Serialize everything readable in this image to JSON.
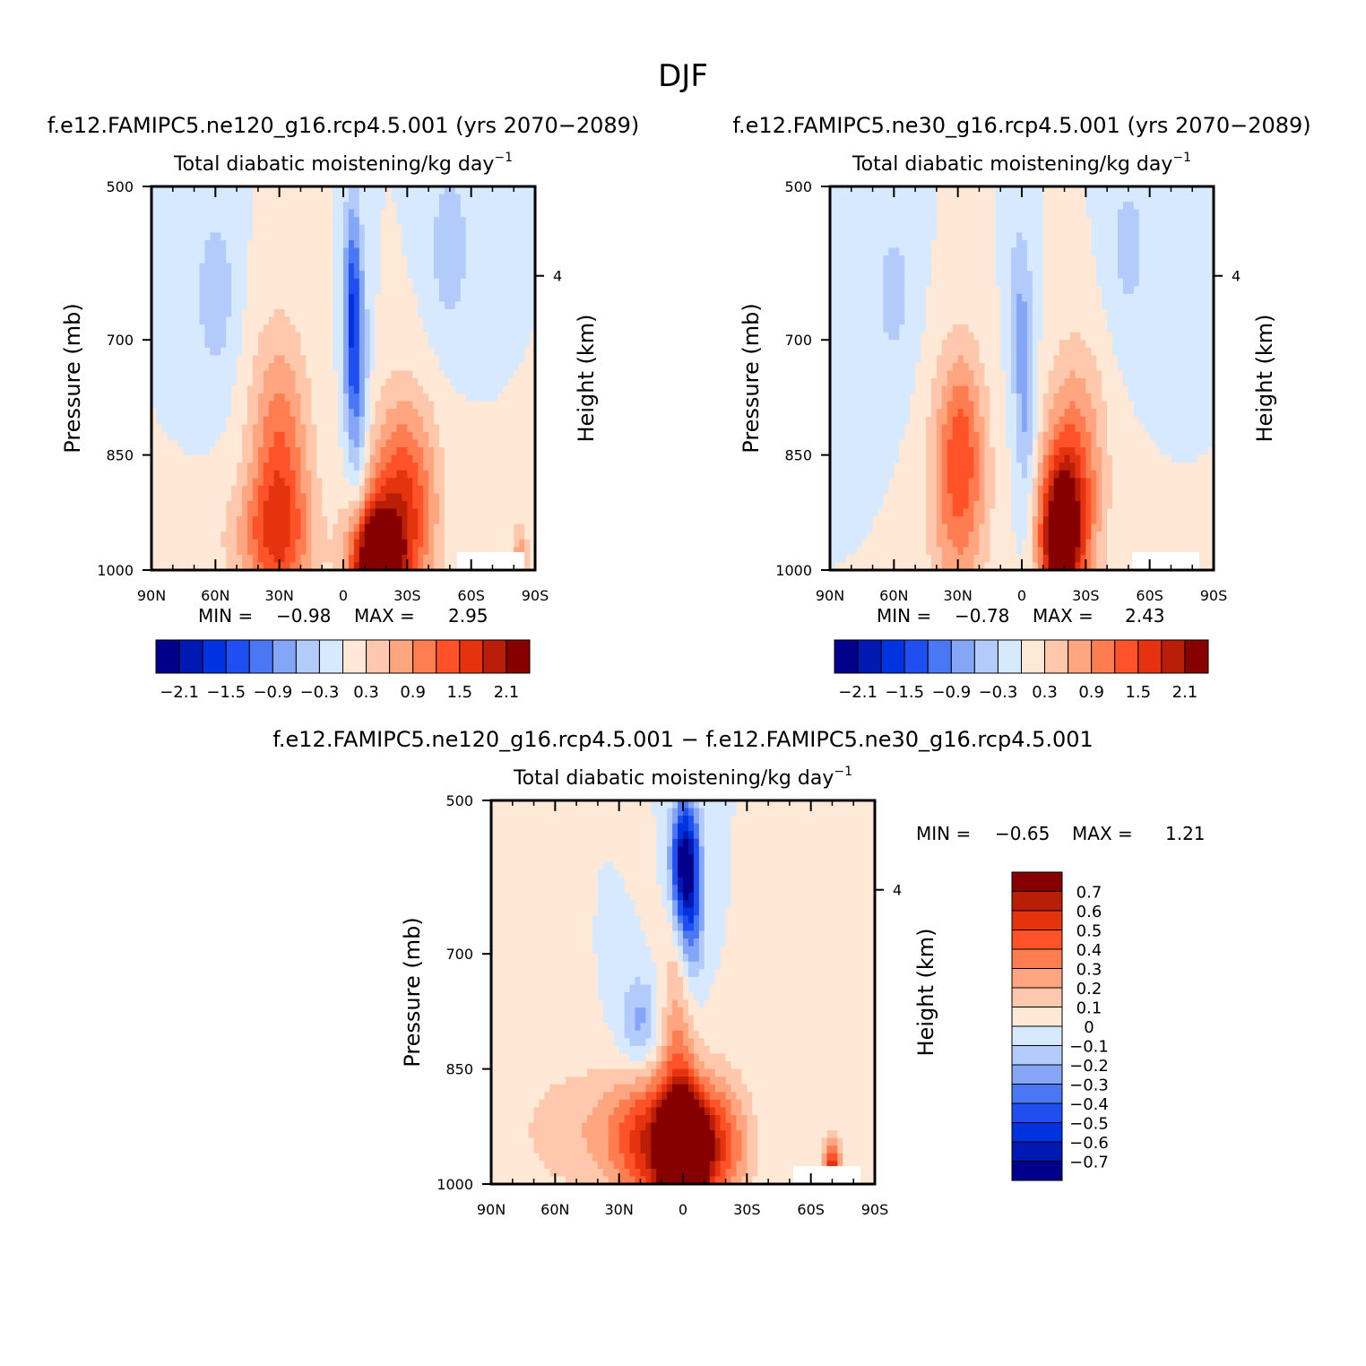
{
  "figure": {
    "title": "DJF"
  },
  "colors": {
    "blue_scale": [
      "#00008b",
      "#0019b2",
      "#0033e0",
      "#1f4ff0",
      "#4a78f5",
      "#85a5f7",
      "#b2cbfa",
      "#d6e9ff"
    ],
    "red_scale": [
      "#ffe8d6",
      "#ffc8ac",
      "#ffa680",
      "#ff7d50",
      "#ff5228",
      "#e6330f",
      "#b81e08",
      "#870000"
    ]
  },
  "chart_data": [
    {
      "type": "heatmap",
      "title": "f.e12.FAMIPC5.ne120_g16.rcp4.5.001 (yrs 2070−2089)",
      "subtitle": "Total diabatic moistening/kg day",
      "subtitle_sup": "−1",
      "ylabel": "Pressure (mb)",
      "y2label": "Height (km)",
      "y_ticks": [
        "500",
        "700",
        "850",
        "1000"
      ],
      "y_ticks_values": [
        500,
        700,
        850,
        1000
      ],
      "y2_ticks": [
        "4"
      ],
      "x_ticks": [
        "90N",
        "60N",
        "30N",
        "0",
        "30S",
        "60S",
        "90S"
      ],
      "x_ticks_values": [
        90,
        60,
        30,
        0,
        -30,
        -60,
        -90
      ],
      "xlim": [
        90,
        -90
      ],
      "ylim": [
        500,
        1000
      ],
      "stats": {
        "min_label": "MIN =",
        "min": "−0.98",
        "max_label": "MAX =",
        "max": "2.95"
      },
      "colorbar": {
        "orientation": "horizontal",
        "labels": [
          "−2.1",
          "−1.5",
          "−0.9",
          "−0.3",
          "0.3",
          "0.9",
          "1.5",
          "2.1"
        ]
      },
      "features": [
        {
          "lat": -15,
          "p": 1000,
          "amp": 3.0,
          "sl": 12,
          "sp": 80
        },
        {
          "lat": -28,
          "p": 920,
          "amp": 1.6,
          "sl": 16,
          "sp": 140
        },
        {
          "lat": 30,
          "p": 880,
          "amp": 1.3,
          "sl": 14,
          "sp": 180
        },
        {
          "lat": 35,
          "p": 960,
          "amp": 0.7,
          "sl": 22,
          "sp": 80
        },
        {
          "lat": -4,
          "p": 660,
          "amp": -1.2,
          "sl": 4,
          "sp": 140
        },
        {
          "lat": -7,
          "p": 760,
          "amp": -0.8,
          "sl": 5,
          "sp": 170
        },
        {
          "lat": 60,
          "p": 640,
          "amp": -0.5,
          "sl": 10,
          "sp": 120
        },
        {
          "lat": -50,
          "p": 580,
          "amp": -0.5,
          "sl": 10,
          "sp": 120
        },
        {
          "lat": -83,
          "p": 980,
          "amp": 0.8,
          "sl": 4,
          "sp": 40
        }
      ]
    },
    {
      "type": "heatmap",
      "title": "f.e12.FAMIPC5.ne30_g16.rcp4.5.001 (yrs 2070−2089)",
      "subtitle": "Total diabatic moistening/kg day",
      "subtitle_sup": "−1",
      "ylabel": "Pressure (mb)",
      "y2label": "Height (km)",
      "y_ticks": [
        "500",
        "700",
        "850",
        "1000"
      ],
      "y_ticks_values": [
        500,
        700,
        850,
        1000
      ],
      "y2_ticks": [
        "4"
      ],
      "x_ticks": [
        "90N",
        "60N",
        "30N",
        "0",
        "30S",
        "60S",
        "90S"
      ],
      "x_ticks_values": [
        90,
        60,
        30,
        0,
        -30,
        -60,
        -90
      ],
      "xlim": [
        90,
        -90
      ],
      "ylim": [
        500,
        1000
      ],
      "stats": {
        "min_label": "MIN =",
        "min": "−0.78",
        "max_label": "MAX =",
        "max": "2.43"
      },
      "colorbar": {
        "orientation": "horizontal",
        "labels": [
          "−2.1",
          "−1.5",
          "−0.9",
          "−0.3",
          "0.3",
          "0.9",
          "1.5",
          "2.1"
        ]
      },
      "features": [
        {
          "lat": -18,
          "p": 960,
          "amp": 2.4,
          "sl": 10,
          "sp": 100
        },
        {
          "lat": -25,
          "p": 880,
          "amp": 1.2,
          "sl": 14,
          "sp": 160
        },
        {
          "lat": 30,
          "p": 900,
          "amp": 1.0,
          "sl": 14,
          "sp": 160
        },
        {
          "lat": 28,
          "p": 820,
          "amp": 0.6,
          "sl": 10,
          "sp": 120
        },
        {
          "lat": -2,
          "p": 780,
          "amp": -0.7,
          "sl": 5,
          "sp": 160
        },
        {
          "lat": 2,
          "p": 650,
          "amp": -0.4,
          "sl": 5,
          "sp": 130
        },
        {
          "lat": 60,
          "p": 640,
          "amp": -0.4,
          "sl": 10,
          "sp": 120
        },
        {
          "lat": -50,
          "p": 580,
          "amp": -0.4,
          "sl": 10,
          "sp": 120
        }
      ]
    },
    {
      "type": "heatmap",
      "title": "f.e12.FAMIPC5.ne120_g16.rcp4.5.001 − f.e12.FAMIPC5.ne30_g16.rcp4.5.001",
      "subtitle": "Total diabatic moistening/kg day",
      "subtitle_sup": "−1",
      "ylabel": "Pressure (mb)",
      "y2label": "Height (km)",
      "y_ticks": [
        "500",
        "700",
        "850",
        "1000"
      ],
      "y_ticks_values": [
        500,
        700,
        850,
        1000
      ],
      "y2_ticks": [
        "4"
      ],
      "x_ticks": [
        "90N",
        "60N",
        "30N",
        "0",
        "30S",
        "60S",
        "90S"
      ],
      "x_ticks_values": [
        90,
        60,
        30,
        0,
        -30,
        -60,
        -90
      ],
      "xlim": [
        90,
        -90
      ],
      "ylim": [
        500,
        1000
      ],
      "stats": {
        "min_label": "MIN =",
        "min": "−0.65",
        "max_label": "MAX =",
        "max": "1.21"
      },
      "colorbar": {
        "orientation": "vertical",
        "labels": [
          "0.7",
          "0.6",
          "0.5",
          "0.4",
          "0.3",
          "0.2",
          "0.1",
          "0",
          "−0.1",
          "−0.2",
          "−0.3",
          "−0.4",
          "−0.5",
          "−0.6",
          "−0.7"
        ]
      },
      "features": [
        {
          "lat": 0,
          "p": 960,
          "amp": 1.2,
          "sl": 10,
          "sp": 70
        },
        {
          "lat": 15,
          "p": 950,
          "amp": 0.5,
          "sl": 18,
          "sp": 90
        },
        {
          "lat": -15,
          "p": 950,
          "amp": 0.5,
          "sl": 16,
          "sp": 90
        },
        {
          "lat": 2,
          "p": 830,
          "amp": 0.3,
          "sl": 9,
          "sp": 170
        },
        {
          "lat": 45,
          "p": 930,
          "amp": 0.18,
          "sl": 35,
          "sp": 90
        },
        {
          "lat": -70,
          "p": 980,
          "amp": 0.6,
          "sl": 4,
          "sp": 40
        },
        {
          "lat": 0,
          "p": 580,
          "amp": -0.65,
          "sl": 6,
          "sp": 80
        },
        {
          "lat": -4,
          "p": 640,
          "amp": -0.4,
          "sl": 6,
          "sp": 120
        },
        {
          "lat": 20,
          "p": 790,
          "amp": -0.25,
          "sl": 10,
          "sp": 60
        },
        {
          "lat": -50,
          "p": 560,
          "amp": 0.08,
          "sl": 6,
          "sp": 200
        }
      ]
    }
  ]
}
